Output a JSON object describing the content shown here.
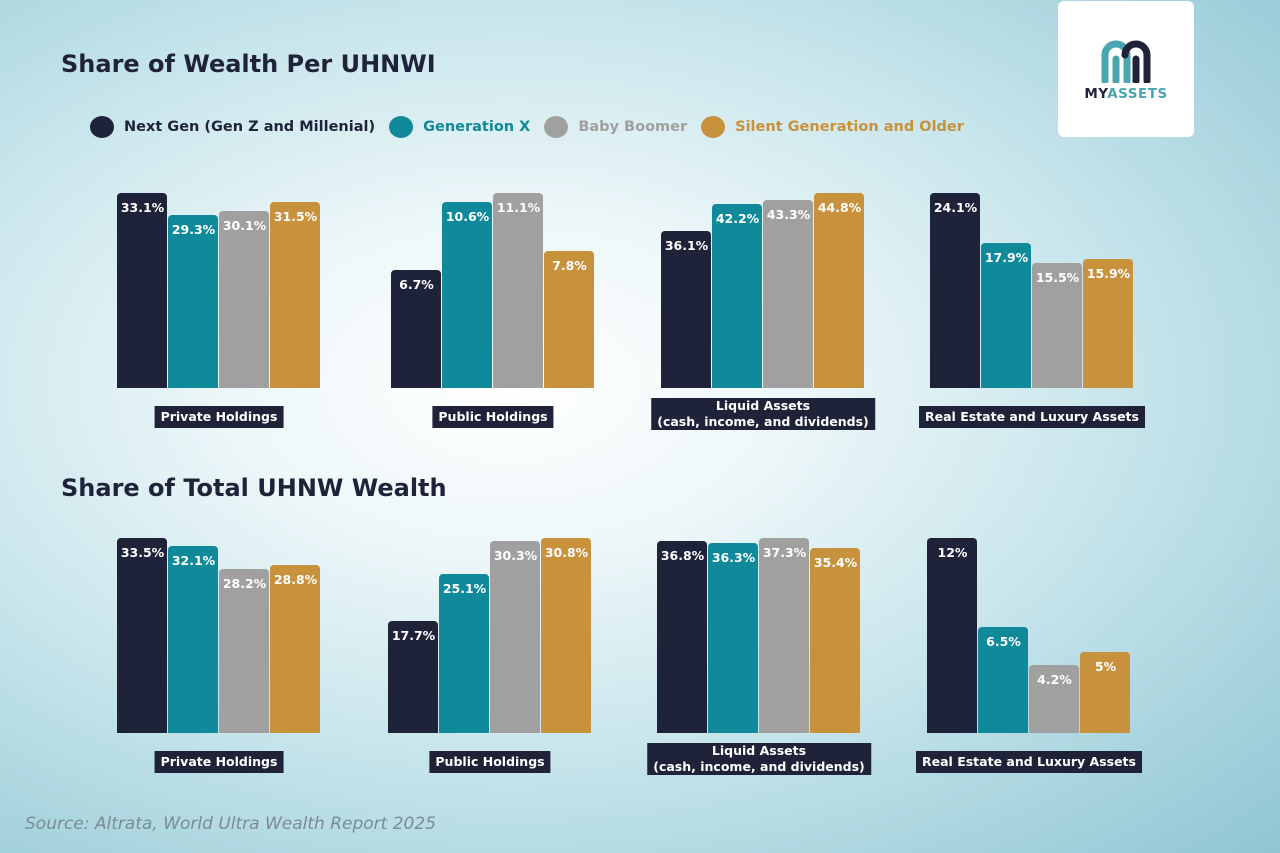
{
  "colors": {
    "Next Gen (Gen Z and Millenial)": "#1f2339",
    "Generation X": "#10899a",
    "Baby Boomer": "#a0a0a0",
    "Silent Generation and Older": "#c8913c"
  },
  "legend": [
    "Next Gen (Gen Z and Millenial)",
    "Generation X",
    "Baby Boomer",
    "Silent Generation and Older"
  ],
  "legend_text_colors": [
    "#1f2339",
    "#10899a",
    "#a0a0a0",
    "#c8913c"
  ],
  "logo": {
    "text_dark": "MY",
    "text_teal": "ASSETS"
  },
  "source": "Source: Altrata, World Ultra Wealth Report 2025",
  "chart_data": [
    {
      "type": "bar",
      "title": "Share of Wealth Per UHNWI",
      "categories": [
        "Private Holdings",
        "Public Holdings",
        "Liquid Assets\n(cash, income, and dividends)",
        "Real Estate and Luxury Assets"
      ],
      "series": [
        {
          "name": "Next Gen (Gen Z and Millenial)",
          "values": [
            33.1,
            6.7,
            36.1,
            24.1
          ],
          "labels": [
            "33.1%",
            "6.7%",
            "36.1%",
            "24.1%"
          ]
        },
        {
          "name": "Generation X",
          "values": [
            29.3,
            10.6,
            42.2,
            17.9
          ],
          "labels": [
            "29.3%",
            "10.6%",
            "42.2%",
            "17.9%"
          ]
        },
        {
          "name": "Baby Boomer",
          "values": [
            30.1,
            11.1,
            43.3,
            15.5
          ],
          "labels": [
            "30.1%",
            "11.1%",
            "43.3%",
            "15.5%"
          ]
        },
        {
          "name": "Silent Generation and Older",
          "values": [
            31.5,
            7.8,
            44.8,
            15.9
          ],
          "labels": [
            "31.5%",
            "7.8%",
            "44.8%",
            "15.9%"
          ]
        }
      ]
    },
    {
      "type": "bar",
      "title": "Share of Total UHNW Wealth",
      "categories": [
        "Private Holdings",
        "Public Holdings",
        "Liquid Assets\n(cash, income, and dividends)",
        "Real Estate and Luxury Assets"
      ],
      "series": [
        {
          "name": "Next Gen (Gen Z and Millenial)",
          "values": [
            33.5,
            17.7,
            36.8,
            12
          ],
          "labels": [
            "33.5%",
            "17.7%",
            "36.8%",
            "12%"
          ]
        },
        {
          "name": "Generation X",
          "values": [
            32.1,
            25.1,
            36.3,
            6.5
          ],
          "labels": [
            "32.1%",
            "25.1%",
            "36.3%",
            "6.5%"
          ]
        },
        {
          "name": "Baby Boomer",
          "values": [
            28.2,
            30.3,
            37.3,
            4.2
          ],
          "labels": [
            "28.2%",
            "30.3%",
            "37.3%",
            "4.2%"
          ]
        },
        {
          "name": "Silent Generation and Older",
          "values": [
            28.8,
            30.8,
            35.4,
            5
          ],
          "labels": [
            "28.8%",
            "30.8%",
            "35.4%",
            "5%"
          ]
        }
      ]
    }
  ]
}
